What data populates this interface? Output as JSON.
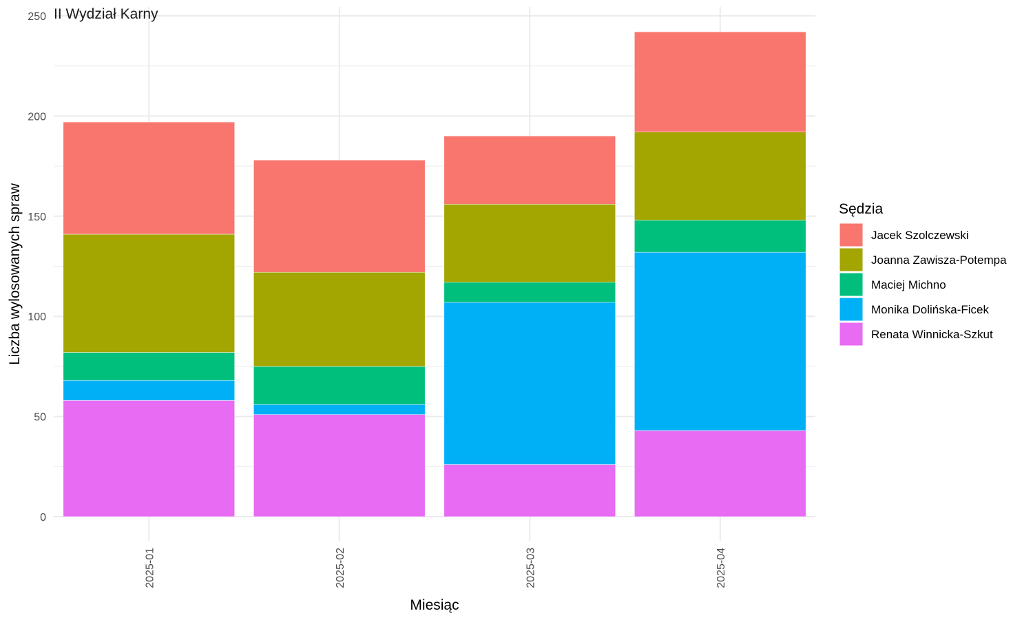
{
  "chart_data": {
    "type": "bar",
    "stacked": true,
    "title": "II Wydział Karny",
    "xlabel": "Miesiąc",
    "ylabel": "Liczba wylosowanych spraw",
    "ylim": [
      0,
      250
    ],
    "yticks": [
      0,
      50,
      100,
      150,
      200,
      250
    ],
    "categories": [
      "2025-01",
      "2025-02",
      "2025-03",
      "2025-04"
    ],
    "legend_title": "Sędzia",
    "legend_position": "right",
    "grid": true,
    "series": [
      {
        "name": "Renata Winnicka-Szkut",
        "color": "#E76BF3",
        "values": [
          58,
          51,
          26,
          43
        ]
      },
      {
        "name": "Monika Dolińska-Ficek",
        "color": "#00B0F6",
        "values": [
          10,
          5,
          81,
          89
        ]
      },
      {
        "name": "Maciej Michno",
        "color": "#00BF7D",
        "values": [
          14,
          19,
          10,
          16
        ]
      },
      {
        "name": "Joanna Zawisza-Potempa",
        "color": "#A3A500",
        "values": [
          59,
          47,
          39,
          44
        ]
      },
      {
        "name": "Jacek Szolczewski",
        "color": "#F8766D",
        "values": [
          56,
          56,
          34,
          50
        ]
      }
    ],
    "legend_order": [
      "Jacek Szolczewski",
      "Joanna Zawisza-Potempa",
      "Maciej Michno",
      "Monika Dolińska-Ficek",
      "Renata Winnicka-Szkut"
    ]
  }
}
